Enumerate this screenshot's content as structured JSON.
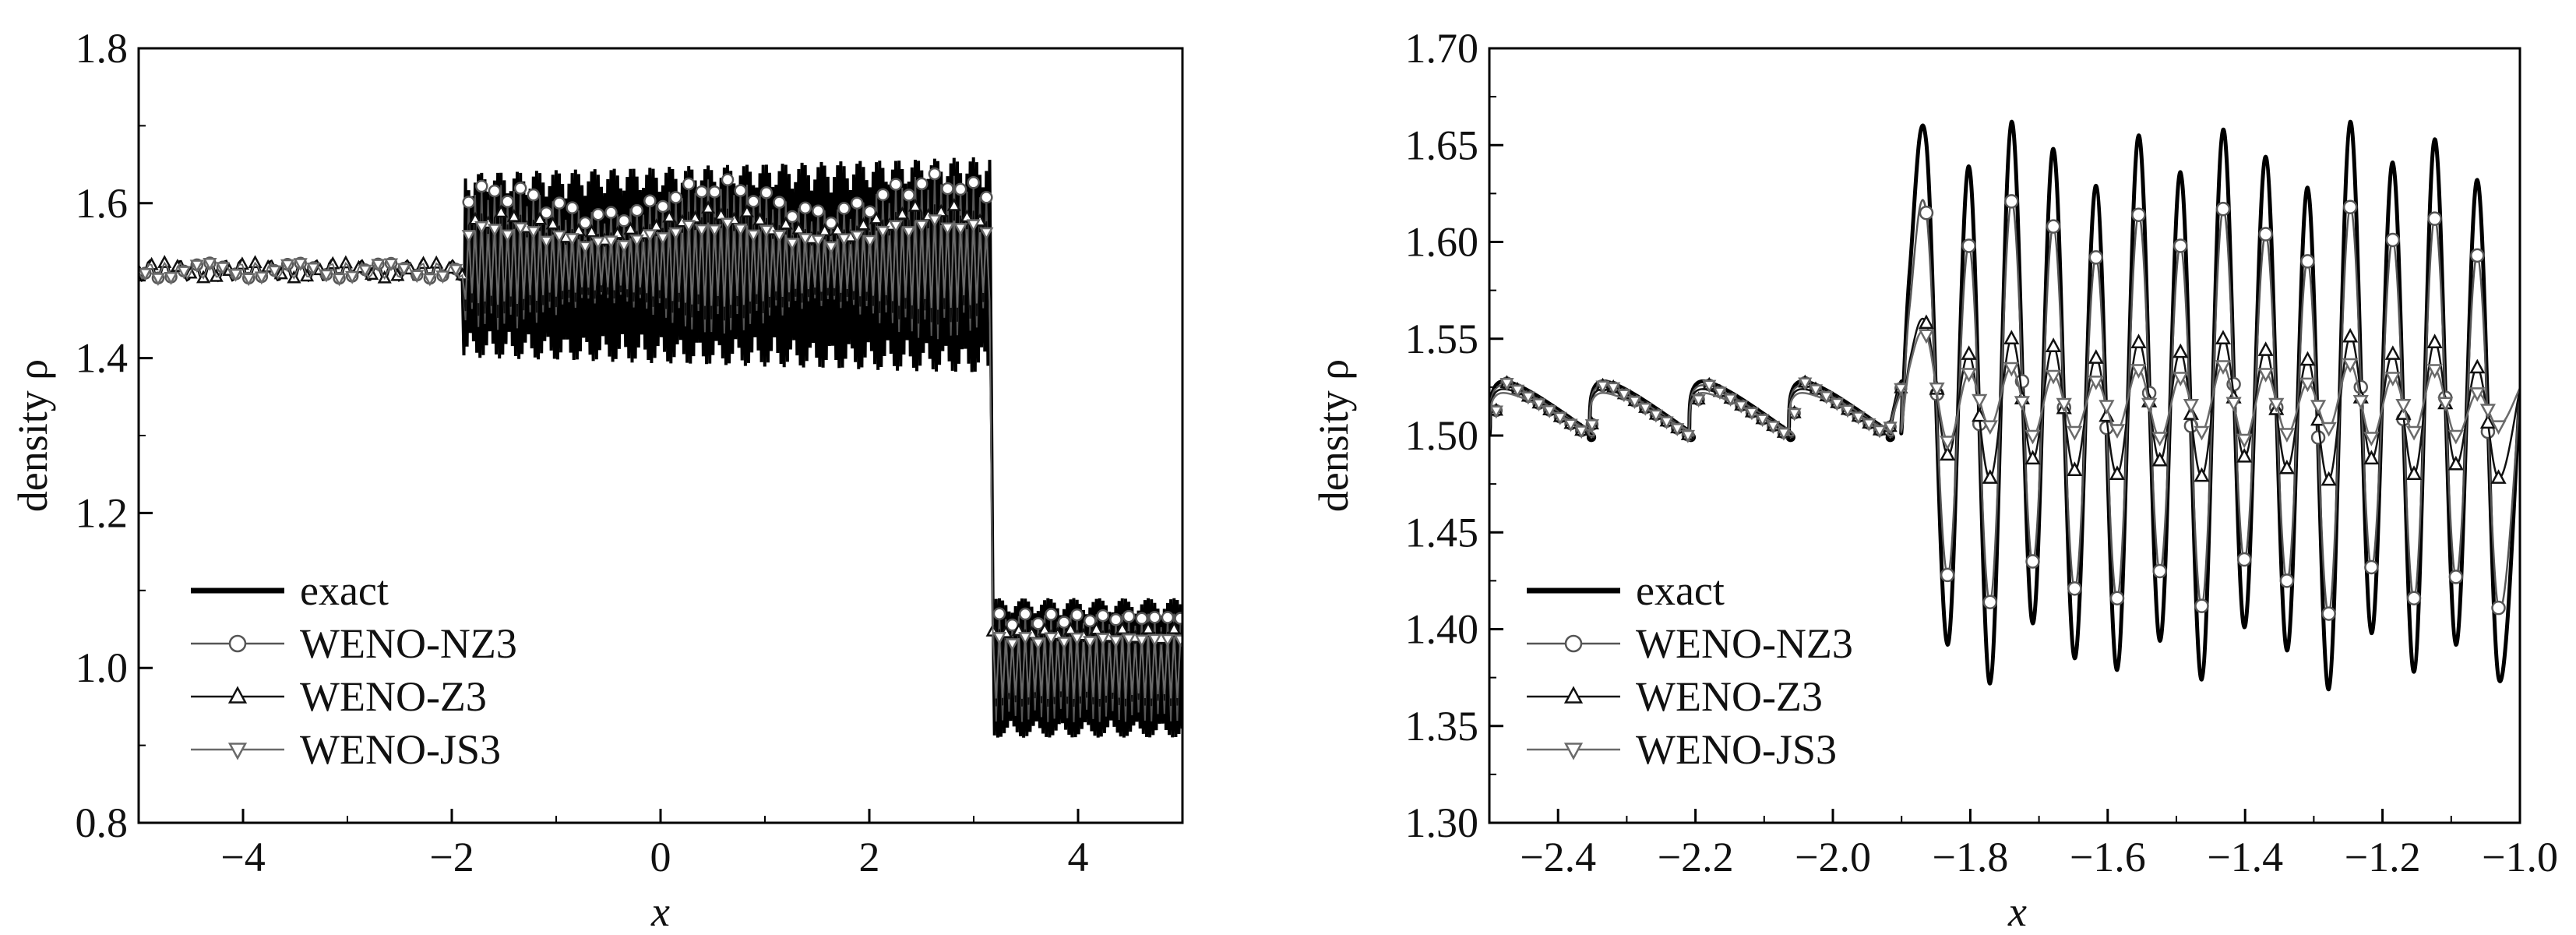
{
  "colors": {
    "exact": "#000000",
    "weno_nz3": "#555555",
    "weno_z3": "#111111",
    "weno_js3": "#6a6a6a",
    "marker_fill": "#ffffff",
    "axis": "#000000"
  },
  "chart_data": [
    {
      "type": "line",
      "title": "",
      "xlabel": "x",
      "ylabel": "density ρ",
      "xlim": [
        -5,
        5
      ],
      "ylim": [
        0.8,
        1.8
      ],
      "xticks": [
        -4,
        -2,
        0,
        2,
        4
      ],
      "xtick_labels": [
        "−4",
        "−2",
        "0",
        "2",
        "4"
      ],
      "yticks": [
        0.8,
        1.0,
        1.2,
        1.4,
        1.6,
        1.8
      ],
      "ytick_labels": [
        "0.8",
        "1.0",
        "1.2",
        "1.4",
        "1.6",
        "1.8"
      ],
      "legend_position": "bottom-left",
      "legend": [
        "exact",
        "WENO-NZ3",
        "WENO-Z3",
        "WENO-JS3"
      ],
      "shock_x": -1.9,
      "contact_x": 3.18,
      "series": [
        {
          "name": "exact",
          "line_style": "thick solid",
          "marker": "none",
          "description_values": {
            "x_lt_shock": "1.51 + sawtooth ~0.02",
            "shock_to_contact": "1.38 to 1.66 high-frequency oscillation",
            "x_gt_contact": "0.91 to 1.09 high-frequency oscillation"
          }
        },
        {
          "name": "WENO-NZ3",
          "line_style": "thin solid",
          "marker": "circle",
          "description_values": {
            "shock_to_contact": "1.42 to 1.64",
            "x_gt_contact": "0.93 to 1.07"
          }
        },
        {
          "name": "WENO-Z3",
          "line_style": "thin solid",
          "marker": "triangle-up",
          "description_values": {
            "shock_to_contact": "1.44 to 1.60",
            "x_gt_contact": "0.95 to 1.05"
          }
        },
        {
          "name": "WENO-JS3",
          "line_style": "thin solid",
          "marker": "triangle-down",
          "description_values": {
            "shock_to_contact": "1.46 to 1.58",
            "x_gt_contact": "0.96 to 1.04"
          }
        }
      ]
    },
    {
      "type": "line",
      "title": "",
      "xlabel": "x",
      "ylabel": "density ρ",
      "xlim": [
        -2.5,
        -1.0
      ],
      "ylim": [
        1.3,
        1.7
      ],
      "xticks": [
        -2.4,
        -2.2,
        -2.0,
        -1.8,
        -1.6,
        -1.4,
        -1.2,
        -1.0
      ],
      "xtick_labels": [
        "−2.4",
        "−2.2",
        "−2.0",
        "−1.8",
        "−1.6",
        "−1.4",
        "−1.2",
        "−1.0"
      ],
      "yticks": [
        1.3,
        1.35,
        1.4,
        1.45,
        1.5,
        1.55,
        1.6,
        1.65,
        1.7
      ],
      "ytick_labels": [
        "1.30",
        "1.35",
        "1.40",
        "1.45",
        "1.50",
        "1.55",
        "1.60",
        "1.65",
        "1.70"
      ],
      "legend_position": "bottom-left",
      "legend": [
        "exact",
        "WENO-NZ3",
        "WENO-Z3",
        "WENO-JS3"
      ],
      "shock_x": -1.9,
      "pre_shock": {
        "sawtooth_period": 0.145,
        "low": 1.5,
        "high": 1.528
      },
      "post_shock_period": 0.0617,
      "post_shock_peaks_x": [
        -1.864,
        -1.802,
        -1.74,
        -1.679,
        -1.617,
        -1.555,
        -1.494,
        -1.432,
        -1.37,
        -1.309,
        -1.247,
        -1.185,
        -1.124,
        -1.062
      ],
      "series": [
        {
          "name": "exact",
          "line_style": "thick solid",
          "marker": "none",
          "peaks": [
            1.651,
            1.639,
            1.662,
            1.648,
            1.629,
            1.655,
            1.636,
            1.658,
            1.644,
            1.628,
            1.662,
            1.641,
            1.653,
            1.632
          ],
          "troughs": [
            1.392,
            1.372,
            1.403,
            1.385,
            1.379,
            1.394,
            1.374,
            1.401,
            1.389,
            1.369,
            1.398,
            1.378,
            1.392,
            1.375
          ]
        },
        {
          "name": "WENO-NZ3",
          "line_style": "thin solid",
          "marker": "circle",
          "peaks": [
            1.615,
            1.598,
            1.621,
            1.608,
            1.592,
            1.614,
            1.598,
            1.617,
            1.604,
            1.59,
            1.618,
            1.601,
            1.612,
            1.593
          ],
          "troughs": [
            1.428,
            1.414,
            1.435,
            1.421,
            1.416,
            1.43,
            1.412,
            1.436,
            1.425,
            1.408,
            1.432,
            1.416,
            1.427,
            1.411
          ]
        },
        {
          "name": "WENO-Z3",
          "line_style": "thin solid",
          "marker": "triangle-up",
          "peaks": [
            1.558,
            1.542,
            1.55,
            1.546,
            1.54,
            1.548,
            1.543,
            1.55,
            1.544,
            1.539,
            1.551,
            1.542,
            1.548,
            1.535
          ],
          "troughs": [
            1.49,
            1.478,
            1.488,
            1.482,
            1.48,
            1.487,
            1.479,
            1.489,
            1.483,
            1.477,
            1.488,
            1.48,
            1.485,
            1.478
          ]
        },
        {
          "name": "WENO-JS3",
          "line_style": "thin solid",
          "marker": "triangle-down",
          "peaks": [
            1.552,
            1.532,
            1.535,
            1.531,
            1.528,
            1.534,
            1.53,
            1.536,
            1.532,
            1.527,
            1.537,
            1.53,
            1.534,
            1.522
          ],
          "troughs": [
            1.497,
            1.505,
            1.5,
            1.502,
            1.503,
            1.499,
            1.502,
            1.498,
            1.501,
            1.504,
            1.499,
            1.502,
            1.5,
            1.505
          ]
        }
      ]
    }
  ]
}
